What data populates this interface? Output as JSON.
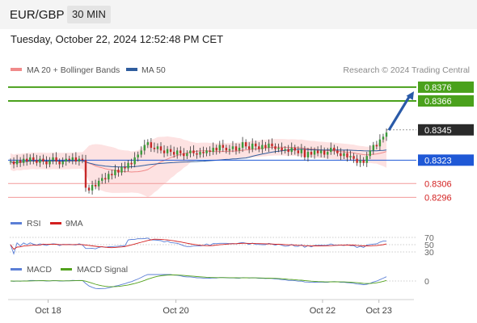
{
  "header": {
    "pair": "EUR/GBP",
    "timeframe": "30 MIN",
    "timestamp": "Tuesday, October 22, 2024 12:52:48 PM CET"
  },
  "legend": {
    "ma20": {
      "label": "MA 20 + Bollinger Bands",
      "color": "#f08a8a"
    },
    "ma50": {
      "label": "MA 50",
      "color": "#2f5d9e"
    },
    "credit": "Research © 2024 Trading Central"
  },
  "colors": {
    "up": "#3a9a3a",
    "down": "#c62828",
    "support": "#1f58d6",
    "target": "#4aa11c",
    "arrow": "#2a5aa8",
    "price": "#2a2a2a"
  },
  "chart_data": [
    {
      "type": "candlestick",
      "ylim": [
        0.8288,
        0.8383
      ],
      "x_ticks": [
        "Oct 18",
        "Oct 20",
        "Oct 22",
        "Oct 23"
      ],
      "levels": [
        {
          "value": 0.8376,
          "label": "0.8376",
          "kind": "target"
        },
        {
          "value": 0.8366,
          "label": "0.8366",
          "kind": "target"
        },
        {
          "value": 0.8345,
          "label": "0.8345",
          "kind": "price"
        },
        {
          "value": 0.8323,
          "label": "0.8323",
          "kind": "support"
        },
        {
          "value": 0.8306,
          "label": "0.8306",
          "kind": "resistance-minor"
        },
        {
          "value": 0.8296,
          "label": "0.8296",
          "kind": "resistance-minor"
        }
      ],
      "closes": [
        0.8322,
        0.832,
        0.8323,
        0.8321,
        0.8324,
        0.8322,
        0.8325,
        0.8323,
        0.8321,
        0.8324,
        0.8322,
        0.832,
        0.8323,
        0.8325,
        0.8322,
        0.832,
        0.8322,
        0.8324,
        0.8323,
        0.8325,
        0.8322,
        0.8324,
        0.8323,
        0.8303,
        0.8301,
        0.8305,
        0.8304,
        0.8308,
        0.831,
        0.8309,
        0.8313,
        0.8312,
        0.8316,
        0.8314,
        0.8318,
        0.8317,
        0.8321,
        0.832,
        0.8325,
        0.8327,
        0.833,
        0.8334,
        0.8336,
        0.8332,
        0.8331,
        0.8333,
        0.833,
        0.8328,
        0.8331,
        0.8329,
        0.8327,
        0.833,
        0.8328,
        0.8326,
        0.8328,
        0.833,
        0.8328,
        0.8327,
        0.8329,
        0.8328,
        0.833,
        0.8329,
        0.8332,
        0.833,
        0.8334,
        0.8332,
        0.833,
        0.8331,
        0.8333,
        0.833,
        0.8332,
        0.8336,
        0.8333,
        0.8331,
        0.8335,
        0.8333,
        0.8331,
        0.8334,
        0.8332,
        0.8335,
        0.8333,
        0.8331,
        0.8332,
        0.833,
        0.8331,
        0.8329,
        0.8332,
        0.833,
        0.8328,
        0.8331,
        0.8325,
        0.8329,
        0.8327,
        0.833,
        0.8328,
        0.833,
        0.8327,
        0.8329,
        0.8332,
        0.833,
        0.8328,
        0.8326,
        0.8328,
        0.8325,
        0.8326,
        0.8324,
        0.8321,
        0.8323,
        0.8321,
        0.8326,
        0.833,
        0.8334,
        0.8333,
        0.8338,
        0.834,
        0.8343
      ]
    },
    {
      "type": "line",
      "series": [
        {
          "name": "RSI",
          "color": "#5b7fd6"
        },
        {
          "name": "9MA",
          "color": "#d32020"
        }
      ],
      "y_ticks": [
        70,
        50,
        30
      ]
    },
    {
      "type": "line",
      "series": [
        {
          "name": "MACD",
          "color": "#5b7fd6"
        },
        {
          "name": "MACD Signal",
          "color": "#52a11c"
        }
      ],
      "y_ticks": [
        0
      ]
    }
  ]
}
